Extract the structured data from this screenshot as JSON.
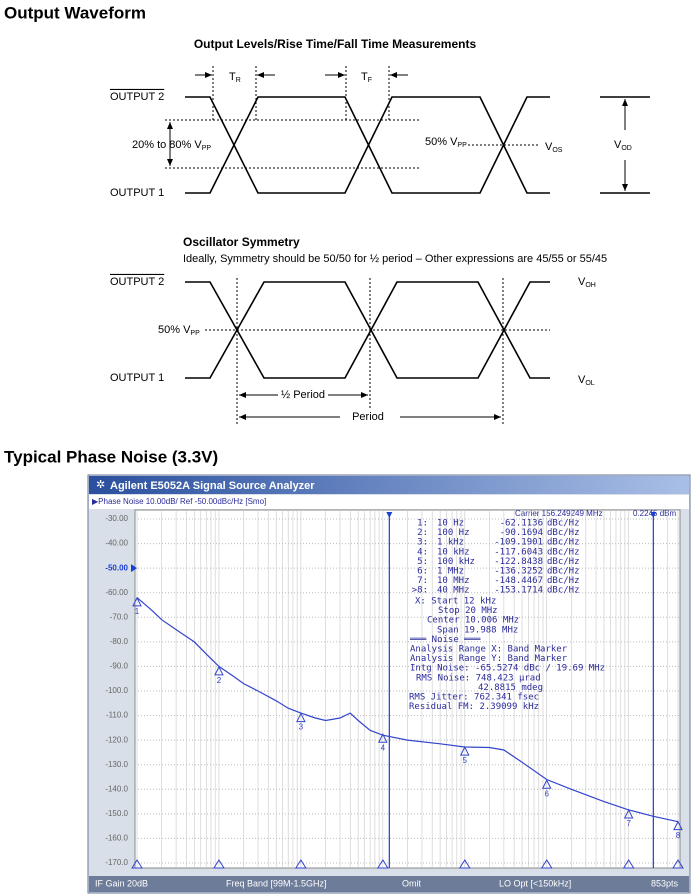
{
  "headings": {
    "output_waveform": "Output Waveform",
    "phase_noise": "Typical Phase Noise (3.3V)"
  },
  "diagram1": {
    "title": "Output Levels/Rise Time/Fall Time Measurements",
    "output2": "OUTPUT 2",
    "output1": "OUTPUT 1",
    "range_label": {
      "text": "20% to 80% V",
      "sub": "PP"
    },
    "rise": {
      "text": "T",
      "sub": "R"
    },
    "fall": {
      "text": "T",
      "sub": "F"
    },
    "mid_label": {
      "text": "50% V",
      "sub": "PP"
    },
    "vos": {
      "text": "V",
      "sub": "OS"
    },
    "vod": {
      "text": "V",
      "sub": "OD"
    }
  },
  "diagram2": {
    "title": "Oscillator Symmetry",
    "note": "Ideally, Symmetry should be 50/50 for ½ period – Other expressions are 45/55 or 55/45",
    "output2": "OUTPUT 2",
    "output1": "OUTPUT 1",
    "mid_label": {
      "text": "50% V",
      "sub": "PP"
    },
    "voh": {
      "text": "V",
      "sub": "OH"
    },
    "vol": {
      "text": "V",
      "sub": "OL"
    },
    "half_period": "½ Period",
    "period": "Period"
  },
  "window": {
    "title": "Agilent E5052A Signal Source Analyzer",
    "trace_header": "▶Phase Noise 10.00dB/ Ref -50.00dBc/Hz [Smo]",
    "carrier": "Carrier 156.249249 MHz",
    "carrier_power": "0.2245 dBm",
    "marker_table": [
      [
        "1:",
        "10 Hz",
        "-62.1136",
        "dBc/Hz"
      ],
      [
        "2:",
        "100 Hz",
        "-90.1694",
        "dBc/Hz"
      ],
      [
        "3:",
        "1 kHz",
        "-109.1901",
        "dBc/Hz"
      ],
      [
        "4:",
        "10 kHz",
        "-117.6043",
        "dBc/Hz"
      ],
      [
        "5:",
        "100 kHz",
        "-122.8438",
        "dBc/Hz"
      ],
      [
        "6:",
        "1 MHz",
        "-136.3252",
        "dBc/Hz"
      ],
      [
        "7:",
        "10 MHz",
        "-148.4467",
        "dBc/Hz"
      ],
      [
        ">8:",
        "40 MHz",
        "-153.1714",
        "dBc/Hz"
      ]
    ],
    "settings": [
      "X: Start 12 kHz",
      "Stop 20 MHz",
      "Center 10.006 MHz",
      "Span 19.988 MHz",
      "═══ Noise ═══",
      "Analysis Range X: Band Marker",
      "Analysis Range Y: Band Marker",
      "Intg Noise: -65.5274 dBc / 19.69 MHz",
      "RMS Noise: 748.423 µrad",
      "42.8815 mdeg",
      "RMS Jitter: 762.341 fsec",
      "Residual FM: 2.39099 kHz"
    ],
    "status": [
      "IF Gain 20dB",
      "Freq Band [99M-1.5GHz]",
      "Omit",
      "LO Opt [<150kHz]",
      "853pts"
    ]
  },
  "chart_data": {
    "type": "line",
    "log_x": true,
    "grid": true,
    "xlim": [
      10,
      40000000
    ],
    "ylim": [
      -170,
      -30
    ],
    "yticks": [
      {
        "value": -30,
        "label": "-30.00"
      },
      {
        "value": -40,
        "label": "-40.00"
      },
      {
        "value": -50,
        "label": "-50.00"
      },
      {
        "value": -60,
        "label": "-60.00"
      },
      {
        "value": -70,
        "label": "-70.0"
      },
      {
        "value": -80,
        "label": "-80.0"
      },
      {
        "value": -90,
        "label": "-90.0"
      },
      {
        "value": -100,
        "label": "-100.0"
      },
      {
        "value": -110,
        "label": "-110.0"
      },
      {
        "value": -120,
        "label": "-120.0"
      },
      {
        "value": -130,
        "label": "-130.0"
      },
      {
        "value": -140,
        "label": "-140.0"
      },
      {
        "value": -150,
        "label": "-150.0"
      },
      {
        "value": -160,
        "label": "-160.0"
      },
      {
        "value": -170,
        "label": "-170.0"
      }
    ],
    "ref_level": -50,
    "band_markers": [
      12000,
      20000000
    ],
    "series": [
      {
        "name": "Phase Noise",
        "color": "#3344cc",
        "x": [
          10,
          15,
          20,
          30,
          50,
          70,
          100,
          150,
          200,
          300,
          500,
          700,
          1000,
          1500,
          2000,
          3000,
          4000,
          5000,
          7000,
          10000,
          20000,
          50000,
          100000,
          200000,
          300000,
          500000,
          1000000,
          2000000,
          5000000,
          10000000,
          20000000,
          40000000
        ],
        "values": [
          -62,
          -67,
          -71,
          -75,
          -80,
          -85,
          -90,
          -94,
          -97,
          -100,
          -104,
          -107,
          -109,
          -111,
          -112,
          -111,
          -109,
          -112,
          -116,
          -118,
          -120,
          -121.5,
          -122.8,
          -123,
          -124,
          -129,
          -136,
          -140,
          -145,
          -148.4,
          -151,
          -153.2
        ]
      }
    ],
    "markers": {
      "labels": [
        "1",
        "2",
        "3",
        "4",
        "5",
        "6",
        "7",
        "8"
      ],
      "x": [
        10,
        100,
        1000,
        10000,
        100000,
        1000000,
        10000000,
        40000000
      ],
      "values": [
        -62.1136,
        -90.1694,
        -109.1901,
        -117.6043,
        -122.8438,
        -136.3252,
        -148.4467,
        -153.1714
      ]
    }
  }
}
